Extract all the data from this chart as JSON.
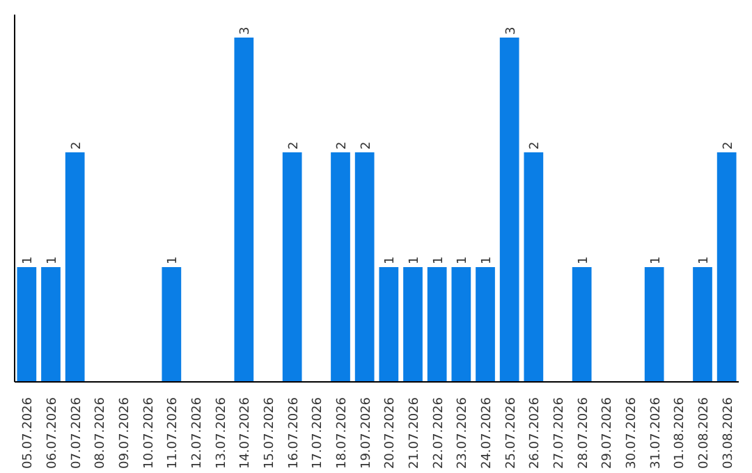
{
  "chart_data": {
    "type": "bar",
    "categories": [
      "05.07.2026",
      "06.07.2026",
      "07.07.2026",
      "08.07.2026",
      "09.07.2026",
      "10.07.2026",
      "11.07.2026",
      "12.07.2026",
      "13.07.2026",
      "14.07.2026",
      "15.07.2026",
      "16.07.2026",
      "17.07.2026",
      "18.07.2026",
      "19.07.2026",
      "20.07.2026",
      "21.07.2026",
      "22.07.2026",
      "23.07.2026",
      "24.07.2026",
      "25.07.2026",
      "26.07.2026",
      "27.07.2026",
      "28.07.2026",
      "29.07.2026",
      "30.07.2026",
      "31.07.2026",
      "01.08.2026",
      "02.08.2026",
      "03.08.2026"
    ],
    "values": [
      1,
      1,
      2,
      0,
      0,
      0,
      1,
      0,
      0,
      3,
      0,
      2,
      0,
      2,
      2,
      1,
      1,
      1,
      1,
      1,
      3,
      2,
      0,
      1,
      0,
      0,
      1,
      0,
      1,
      2
    ],
    "value_labels": [
      "1",
      "1",
      "2",
      null,
      null,
      null,
      "1",
      null,
      null,
      "3",
      null,
      "2",
      null,
      "2",
      "2",
      "1",
      "1",
      "1",
      "1",
      "1",
      "3",
      "2",
      null,
      "1",
      null,
      null,
      "1",
      null,
      "1",
      "2"
    ],
    "color": "#0a7ee6",
    "ylim": [
      0,
      3.2
    ],
    "tick_labels": "x",
    "grid": false
  }
}
